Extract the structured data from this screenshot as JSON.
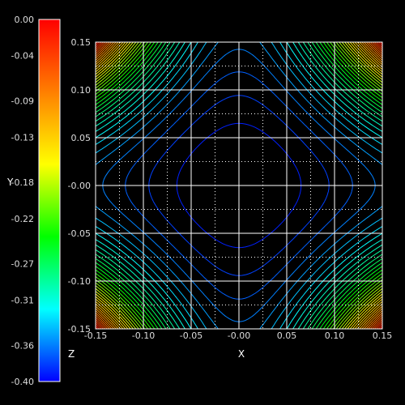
{
  "chart_data": {
    "type": "contour",
    "title": "",
    "xlabel": "X",
    "ylabel": "Y",
    "colorbar_label": "Z",
    "xlim": [
      -0.15,
      0.15
    ],
    "ylim": [
      -0.15,
      0.15
    ],
    "zlim": [
      -0.4,
      0.0
    ],
    "x_tick_labels": [
      "-0.15",
      "-0.10",
      "-0.05",
      "-0.00",
      "0.05",
      "0.10",
      "0.15"
    ],
    "x_tick_values": [
      -0.15,
      -0.1,
      -0.05,
      0.0,
      0.05,
      0.1,
      0.15
    ],
    "y_tick_labels": [
      "0.15",
      "0.10",
      "0.05",
      "-0.00",
      "-0.05",
      "-0.10",
      "-0.15"
    ],
    "y_tick_values": [
      0.15,
      0.1,
      0.05,
      0.0,
      -0.05,
      -0.1,
      -0.15
    ],
    "colorbar_tick_labels": [
      "0.00",
      "-0.04",
      "-0.09",
      "-0.13",
      "-0.18",
      "-0.22",
      "-0.27",
      "-0.31",
      "-0.36",
      "-0.40"
    ],
    "colorbar_tick_values": [
      0.0,
      -0.04,
      -0.09,
      -0.13,
      -0.18,
      -0.22,
      -0.27,
      -0.31,
      -0.36,
      -0.4
    ],
    "colormap": [
      "#ff0000",
      "#ff7f00",
      "#ffff00",
      "#00ff00",
      "#00ffff",
      "#0000ff"
    ],
    "grid": true,
    "contour_levels": 40,
    "background": "#000000",
    "frame_color": "#ffffff"
  }
}
